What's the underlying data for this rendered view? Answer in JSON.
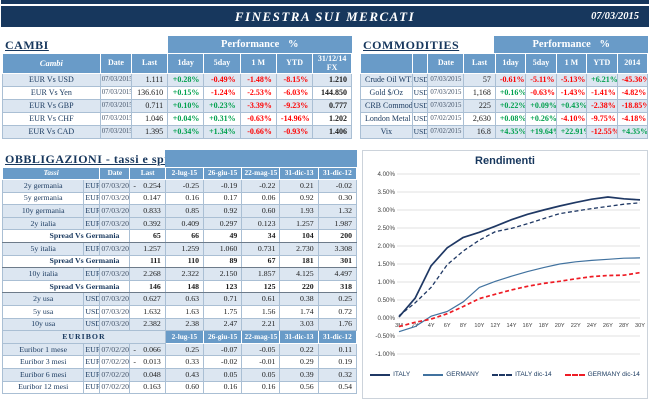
{
  "colors": {
    "navy": "#17375d",
    "blue": "#699bc8",
    "rowalt": "#dce6f1",
    "pos": "#00a04d",
    "neg": "#ff0000"
  },
  "header": {
    "title": "FINESTRA SUI MERCATI",
    "date": "07/03/2015"
  },
  "cambi": {
    "title": "CAMBI",
    "performance_label": "Performance %",
    "columns": [
      "Cambi",
      "Date",
      "Last",
      "1day",
      "5day",
      "1 M",
      "YTD",
      "31/12/14 FX"
    ],
    "rows": [
      {
        "name": "EUR Vs USD",
        "date": "07/03/2015",
        "last": "1.111",
        "perf": [
          "+0.28%",
          "-0.49%",
          "-1.48%",
          "-8.15%"
        ],
        "fx": "1.210"
      },
      {
        "name": "EUR Vs Yen",
        "date": "07/03/2015",
        "last": "136.610",
        "perf": [
          "+0.15%",
          "-1.24%",
          "-2.53%",
          "-6.03%"
        ],
        "fx": "144.850"
      },
      {
        "name": "EUR Vs GBP",
        "date": "07/03/2015",
        "last": "0.711",
        "perf": [
          "+0.10%",
          "+0.23%",
          "-3.39%",
          "-9.23%"
        ],
        "fx": "0.777"
      },
      {
        "name": "EUR Vs CHF",
        "date": "07/03/2015",
        "last": "1.046",
        "perf": [
          "+0.04%",
          "+0.31%",
          "-0.63%",
          "-14.96%"
        ],
        "fx": "1.202"
      },
      {
        "name": "EUR Vs CAD",
        "date": "07/03/2015",
        "last": "1.395",
        "perf": [
          "+0.34%",
          "+1.34%",
          "-0.66%",
          "-0.93%"
        ],
        "fx": "1.406"
      }
    ]
  },
  "commodities": {
    "title": "COMMODITIES",
    "performance_label": "Performance %",
    "columns": [
      "",
      "",
      "Date",
      "Last",
      "1day",
      "5day",
      "1 M",
      "YTD",
      "2014"
    ],
    "rows": [
      {
        "name": "Crude Oil WTI",
        "cur": "USD",
        "date": "07/03/2015",
        "last": "57",
        "perf": [
          "-0.61%",
          "-5.11%",
          "-5.13%",
          "+6.21%",
          "-45.36%"
        ]
      },
      {
        "name": "Gold $/Oz",
        "cur": "USD",
        "date": "07/03/2015",
        "last": "1,168",
        "perf": [
          "+0.16%",
          "-0.63%",
          "-1.43%",
          "-1.41%",
          "-4.82%"
        ]
      },
      {
        "name": "CRB Commodity",
        "cur": "USD",
        "date": "07/03/2015",
        "last": "225",
        "perf": [
          "+0.22%",
          "+0.09%",
          "+0.43%",
          "-2.38%",
          "-18.85%"
        ]
      },
      {
        "name": "London Metal",
        "cur": "USD",
        "date": "07/02/2015",
        "last": "2,630",
        "perf": [
          "+0.08%",
          "+0.26%",
          "-4.10%",
          "-9.75%",
          "-4.18%"
        ]
      },
      {
        "name": "Vix",
        "cur": "USD",
        "date": "07/02/2015",
        "last": "16.8",
        "perf": [
          "+4.35%",
          "+19.64%",
          "+22.91%",
          "-12.55%",
          "+4.35%"
        ]
      }
    ]
  },
  "obbligazioni": {
    "title": "OBBLIGAZIONI - tassi e spread",
    "first_column": "Tassi",
    "date_columns": [
      "2-lug-15",
      "26-giu-15",
      "22-mag-15",
      "31-dic-13",
      "31-dic-12"
    ],
    "header_date": "Date",
    "header_last": "Last",
    "rows": [
      {
        "type": "data",
        "shade": true,
        "name": "2y germania",
        "cur": "EUR",
        "date": "07/03/2015",
        "neg": "-",
        "last": "0.254",
        "vals": [
          "-0.25",
          "-0.19",
          "-0.22",
          "0.21",
          "-0.02"
        ]
      },
      {
        "type": "data",
        "shade": false,
        "name": "5y germania",
        "cur": "EUR",
        "date": "07/03/2015",
        "neg": "",
        "last": "0.147",
        "vals": [
          "0.16",
          "0.17",
          "0.06",
          "0.92",
          "0.30"
        ]
      },
      {
        "type": "data",
        "shade": true,
        "name": "10y germania",
        "cur": "EUR",
        "date": "07/03/2015",
        "neg": "",
        "last": "0.833",
        "vals": [
          "0.85",
          "0.92",
          "0.60",
          "1.93",
          "1.32"
        ]
      },
      {
        "type": "data",
        "shade": true,
        "name": "2y italia",
        "cur": "EUR",
        "date": "07/03/2015",
        "neg": "",
        "last": "0.392",
        "vals": [
          "0.409",
          "0.297",
          "0.123",
          "1.257",
          "1.987"
        ]
      },
      {
        "type": "spread",
        "label": "Spread Vs Germania",
        "last": "65",
        "vals": [
          "66",
          "49",
          "34",
          "104",
          "200"
        ]
      },
      {
        "type": "data",
        "shade": true,
        "name": "5y italia",
        "cur": "EUR",
        "date": "07/03/2015",
        "neg": "",
        "last": "1.257",
        "vals": [
          "1.259",
          "1.060",
          "0.731",
          "2.730",
          "3.308"
        ]
      },
      {
        "type": "spread",
        "label": "Spread Vs Germania",
        "last": "111",
        "vals": [
          "110",
          "89",
          "67",
          "181",
          "301"
        ]
      },
      {
        "type": "data",
        "shade": true,
        "name": "10y italia",
        "cur": "EUR",
        "date": "07/03/2015",
        "neg": "",
        "last": "2.268",
        "vals": [
          "2.322",
          "2.150",
          "1.857",
          "4.125",
          "4.497"
        ]
      },
      {
        "type": "spread",
        "label": "Spread Vs Germania",
        "last": "146",
        "vals": [
          "148",
          "123",
          "125",
          "220",
          "318"
        ]
      },
      {
        "type": "data",
        "shade": true,
        "name": "2y usa",
        "cur": "USD",
        "date": "07/03/2015",
        "neg": "",
        "last": "0.627",
        "vals": [
          "0.63",
          "0.71",
          "0.61",
          "0.38",
          "0.25"
        ]
      },
      {
        "type": "data",
        "shade": false,
        "name": "5y usa",
        "cur": "USD",
        "date": "07/03/2015",
        "neg": "",
        "last": "1.632",
        "vals": [
          "1.63",
          "1.75",
          "1.56",
          "1.74",
          "0.72"
        ]
      },
      {
        "type": "data",
        "shade": true,
        "name": "10y usa",
        "cur": "USD",
        "date": "07/03/2015",
        "neg": "",
        "last": "2.382",
        "vals": [
          "2.38",
          "2.47",
          "2.21",
          "3.03",
          "1.76"
        ]
      }
    ],
    "euribor": {
      "label": "EURIBOR",
      "date_columns": [
        "2-lug-15",
        "26-giu-15",
        "22-mag-15",
        "31-dic-13",
        "31-dic-12"
      ],
      "rows": [
        {
          "shade": true,
          "name": "Euribor 1 mese",
          "cur": "EUR",
          "date": "07/02/2015",
          "neg": "-",
          "last": "0.066",
          "vals": [
            "0.25",
            "-0.07",
            "-0.05",
            "0.22",
            "0.11"
          ]
        },
        {
          "shade": false,
          "name": "Euribor 3 mesi",
          "cur": "EUR",
          "date": "07/02/2015",
          "neg": "-",
          "last": "0.013",
          "vals": [
            "0.33",
            "-0.02",
            "-0.01",
            "0.29",
            "0.19"
          ]
        },
        {
          "shade": true,
          "name": "Euribor 6 mesi",
          "cur": "EUR",
          "date": "07/02/2015",
          "neg": "",
          "last": "0.048",
          "vals": [
            "0.43",
            "0.05",
            "0.05",
            "0.39",
            "0.32"
          ]
        },
        {
          "shade": false,
          "name": "Euribor 12 mesi",
          "cur": "EUR",
          "date": "07/02/2015",
          "neg": "",
          "last": "0.163",
          "vals": [
            "0.60",
            "0.16",
            "0.16",
            "0.56",
            "0.54"
          ]
        }
      ]
    }
  },
  "chart_data": {
    "type": "line",
    "title": "Rendimenti",
    "xlabel": "",
    "ylabel": "",
    "ylim": [
      -1,
      4
    ],
    "y_tick_step": 0.5,
    "grid": "horizontal",
    "legend_position": "bottom",
    "x_ticks": [
      "3M",
      "2Y",
      "4Y",
      "6Y",
      "8Y",
      "10Y",
      "12Y",
      "14Y",
      "16Y",
      "18Y",
      "20Y",
      "22Y",
      "24Y",
      "26Y",
      "28Y",
      "30Y"
    ],
    "series": [
      {
        "name": "ITALY",
        "color": "#1f3864",
        "dash": false,
        "values": [
          0.03,
          0.55,
          1.45,
          1.95,
          2.24,
          2.38,
          2.55,
          2.73,
          2.88,
          3.0,
          3.11,
          3.21,
          3.3,
          3.36,
          3.31,
          3.28
        ]
      },
      {
        "name": "GERMANY",
        "color": "#41729f",
        "dash": false,
        "values": [
          -0.38,
          -0.24,
          0.05,
          0.18,
          0.45,
          0.85,
          1.02,
          1.16,
          1.29,
          1.4,
          1.5,
          1.56,
          1.6,
          1.63,
          1.66,
          1.67
        ]
      },
      {
        "name": "ITALY dic-14",
        "color": "#1f3864",
        "dash": true,
        "values": [
          0.06,
          0.42,
          0.85,
          1.48,
          1.86,
          2.16,
          2.4,
          2.49,
          2.62,
          2.76,
          2.9,
          2.97,
          3.04,
          3.1,
          3.16,
          3.2
        ]
      },
      {
        "name": "GERMANY dic-14",
        "color": "#ee1c25",
        "dash": true,
        "values": [
          -0.24,
          -0.12,
          -0.03,
          0.12,
          0.32,
          0.54,
          0.66,
          0.78,
          0.88,
          0.96,
          1.02,
          1.09,
          1.15,
          1.18,
          1.19,
          1.26
        ]
      }
    ]
  }
}
